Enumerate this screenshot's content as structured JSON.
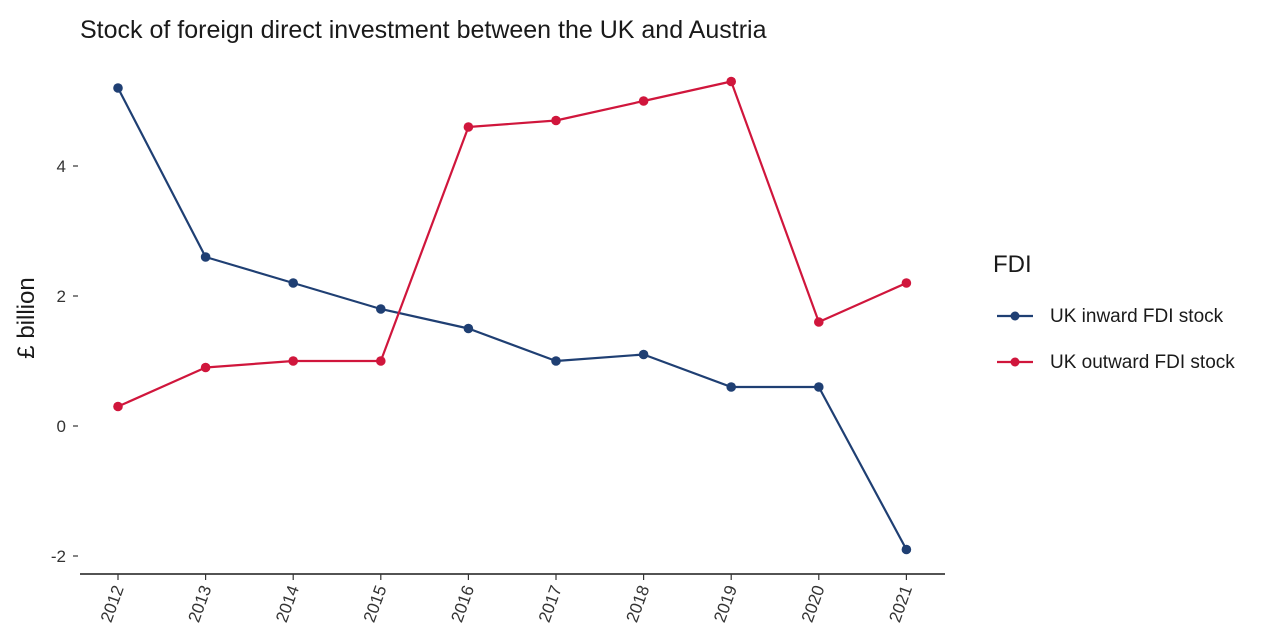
{
  "chart_data": {
    "type": "line",
    "title": "Stock of foreign direct investment between the UK and Austria",
    "xlabel": "",
    "ylabel": "£ billion",
    "x": [
      "2012",
      "2013",
      "2014",
      "2015",
      "2016",
      "2017",
      "2018",
      "2019",
      "2020",
      "2021"
    ],
    "ylim": [
      -2.2,
      5.5
    ],
    "yticks": [
      "-2",
      "0",
      "2",
      "4"
    ],
    "grid": false,
    "legend": {
      "title": "FDI",
      "placement": "right"
    },
    "series": [
      {
        "name": "UK inward FDI stock",
        "color": "#1f3f73",
        "values": [
          5.2,
          2.6,
          2.2,
          1.8,
          1.5,
          1.0,
          1.1,
          0.6,
          0.6,
          -1.9
        ]
      },
      {
        "name": "UK outward FDI stock",
        "color": "#d0163c",
        "values": [
          0.3,
          0.9,
          1.0,
          1.0,
          4.6,
          4.7,
          5.0,
          5.3,
          1.6,
          2.2
        ]
      }
    ]
  }
}
